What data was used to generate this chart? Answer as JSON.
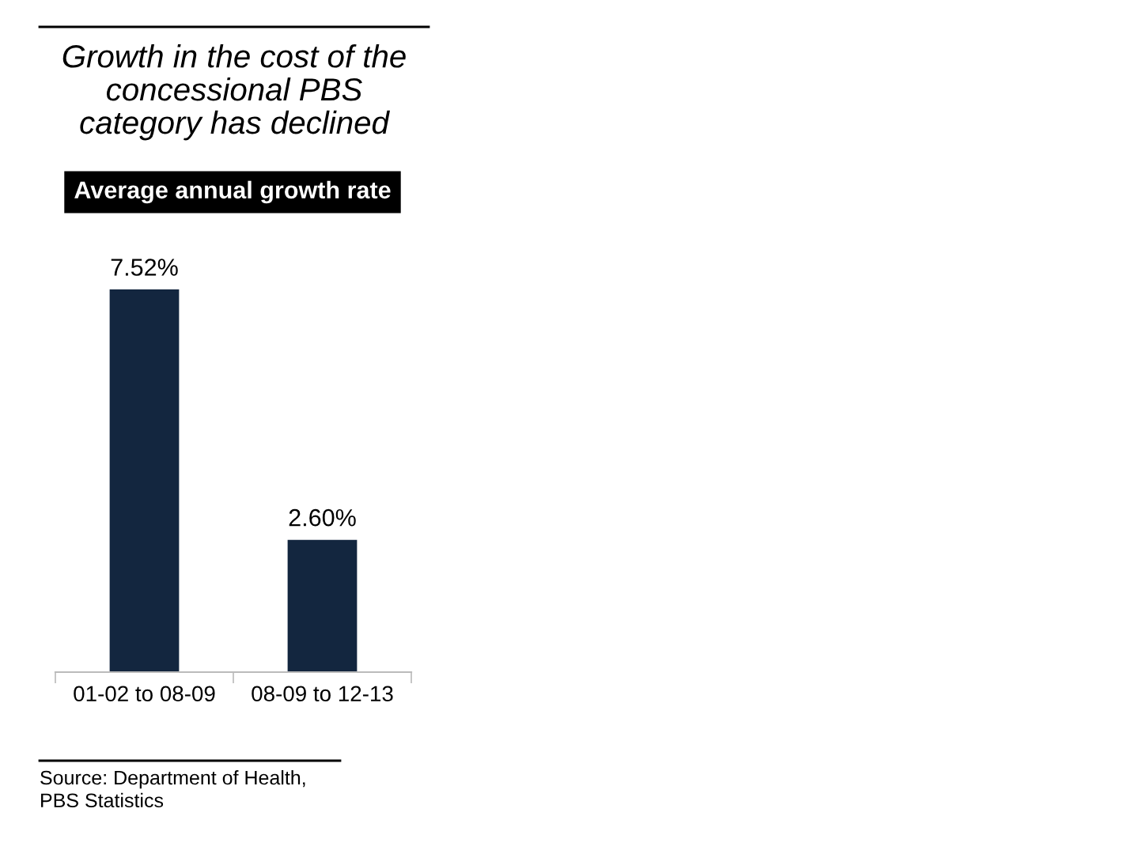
{
  "chart_data": {
    "type": "bar",
    "title": "Growth in the cost of the\nconcessional PBS\ncategory has declined",
    "subtitle": "Average annual growth rate",
    "categories": [
      "01-02 to 08-09",
      "08-09 to 12-13"
    ],
    "values": [
      7.52,
      2.6
    ],
    "color": "#13263f",
    "value_labels": [
      "7.52%",
      "2.60%"
    ],
    "tick_labels": "x",
    "grid": false,
    "legend": false,
    "annotations": [
      "Source: Department of Health,\nPBS Statistics"
    ]
  }
}
